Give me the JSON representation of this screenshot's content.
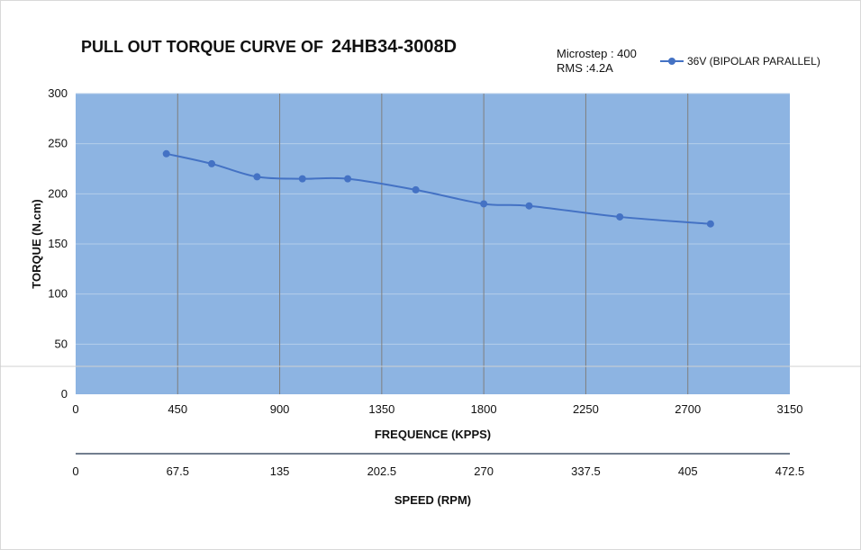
{
  "header": {
    "title": "PULL OUT TORQUE CURVE OF",
    "model": "24HB34-3008D",
    "microstep": "Microstep : 400",
    "rms": "RMS :4.2A"
  },
  "colors": {
    "plot_background": "#8db4e2",
    "series": "#4472c4",
    "gridline": "#7f7f7f",
    "secondary_axis": "#44546a"
  },
  "chart_data": {
    "type": "line",
    "title": "PULL OUT TORQUE CURVE OF 24HB34-3008D",
    "xlabel": "FREQUENCE (KPPS)",
    "ylabel": "TORQUE (N.cm)",
    "secondary_xlabel": "SPEED (RPM)",
    "xlim": [
      0,
      3150
    ],
    "ylim": [
      0,
      300
    ],
    "x_ticks": [
      "0",
      "450",
      "900",
      "1350",
      "1800",
      "2250",
      "2700",
      "3150"
    ],
    "y_ticks": [
      "0",
      "50",
      "100",
      "150",
      "200",
      "250",
      "300"
    ],
    "secondary_x_ticks": [
      "0",
      "67.5",
      "135",
      "202.5",
      "270",
      "337.5",
      "405",
      "472.5"
    ],
    "grid": "vertical",
    "legend": "top-right",
    "series": [
      {
        "name": "36V  (BIPOLAR PARALLEL)",
        "x": [
          400,
          600,
          800,
          1000,
          1200,
          1500,
          1800,
          2000,
          2400,
          2800
        ],
        "y": [
          240,
          230,
          217,
          215,
          215,
          204,
          190,
          188,
          177,
          170
        ]
      }
    ]
  }
}
